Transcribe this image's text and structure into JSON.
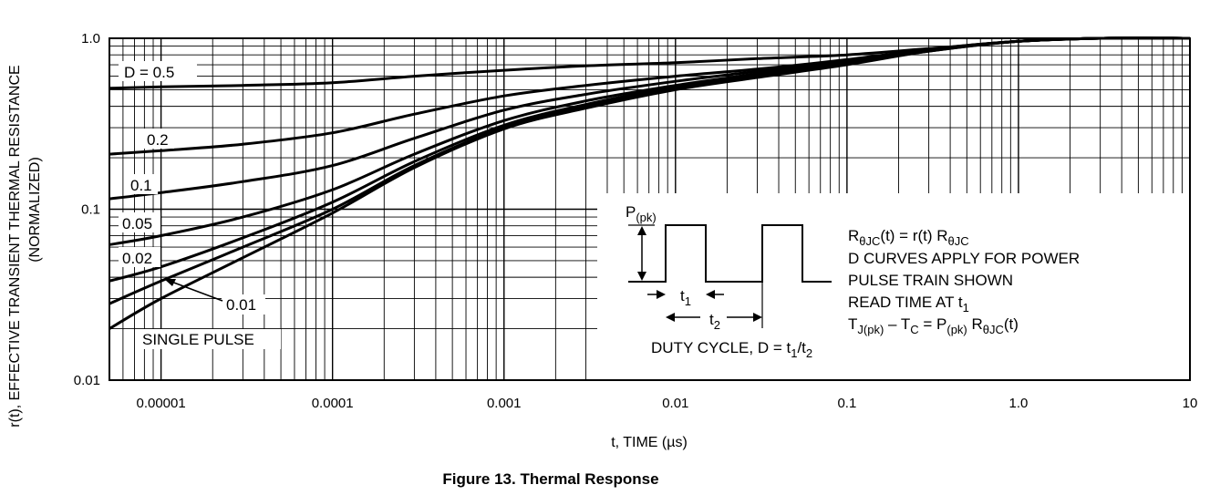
{
  "caption": "Figure 13. Thermal Response",
  "chart_data": {
    "type": "line",
    "title": "",
    "xlabel": "t, TIME (µs)",
    "ylabel_line1": "r(t), EFFECTIVE TRANSIENT THERMAL RESISTANCE",
    "ylabel_line2": "(NORMALIZED)",
    "x_scale": "log",
    "y_scale": "log",
    "xlim": [
      5e-06,
      10
    ],
    "ylim": [
      0.01,
      1.0
    ],
    "x_ticks": [
      {
        "value": 1e-05,
        "label": "0.00001"
      },
      {
        "value": 0.0001,
        "label": "0.0001"
      },
      {
        "value": 0.001,
        "label": "0.001"
      },
      {
        "value": 0.01,
        "label": "0.01"
      },
      {
        "value": 0.1,
        "label": "0.1"
      },
      {
        "value": 1,
        "label": "1.0"
      },
      {
        "value": 10,
        "label": "10"
      }
    ],
    "y_ticks": [
      {
        "value": 0.01,
        "label": "0.01"
      },
      {
        "value": 0.1,
        "label": "0.1"
      },
      {
        "value": 1,
        "label": "1.0"
      }
    ],
    "grid": true,
    "series": [
      {
        "name": "D = 0.5",
        "label": "D = 0.5",
        "x": [
          5e-06,
          1e-05,
          3e-05,
          0.0001,
          0.0003,
          0.001,
          0.003,
          0.01,
          0.03,
          0.1,
          0.3,
          1,
          3,
          10
        ],
        "y": [
          0.51,
          0.52,
          0.53,
          0.55,
          0.6,
          0.65,
          0.69,
          0.72,
          0.76,
          0.8,
          0.87,
          0.96,
          1.0,
          1.0
        ]
      },
      {
        "name": "0.2",
        "label": "0.2",
        "x": [
          5e-06,
          1e-05,
          3e-05,
          0.0001,
          0.0003,
          0.001,
          0.003,
          0.01,
          0.03,
          0.1,
          0.3,
          1,
          3,
          10
        ],
        "y": [
          0.21,
          0.22,
          0.24,
          0.28,
          0.36,
          0.46,
          0.53,
          0.6,
          0.66,
          0.75,
          0.86,
          0.96,
          1.0,
          1.0
        ]
      },
      {
        "name": "0.1",
        "label": "0.1",
        "x": [
          5e-06,
          1e-05,
          3e-05,
          0.0001,
          0.0003,
          0.001,
          0.003,
          0.01,
          0.03,
          0.1,
          0.3,
          1,
          3,
          10
        ],
        "y": [
          0.115,
          0.125,
          0.145,
          0.18,
          0.26,
          0.38,
          0.47,
          0.56,
          0.64,
          0.74,
          0.86,
          0.96,
          1.0,
          1.0
        ]
      },
      {
        "name": "0.05",
        "label": "0.05",
        "x": [
          5e-06,
          1e-05,
          3e-05,
          0.0001,
          0.0003,
          0.001,
          0.003,
          0.01,
          0.03,
          0.1,
          0.3,
          1,
          3,
          10
        ],
        "y": [
          0.062,
          0.07,
          0.09,
          0.13,
          0.21,
          0.33,
          0.43,
          0.53,
          0.62,
          0.73,
          0.85,
          0.96,
          1.0,
          1.0
        ]
      },
      {
        "name": "0.02",
        "label": "0.02",
        "x": [
          5e-06,
          1e-05,
          3e-05,
          0.0001,
          0.0003,
          0.001,
          0.003,
          0.01,
          0.03,
          0.1,
          0.3,
          1,
          3,
          10
        ],
        "y": [
          0.038,
          0.046,
          0.068,
          0.11,
          0.19,
          0.31,
          0.41,
          0.52,
          0.61,
          0.72,
          0.85,
          0.96,
          1.0,
          1.0
        ]
      },
      {
        "name": "0.01",
        "label": "0.01",
        "x": [
          5e-06,
          1e-05,
          3e-05,
          0.0001,
          0.0003,
          0.001,
          0.003,
          0.01,
          0.03,
          0.1,
          0.3,
          1,
          3,
          10
        ],
        "y": [
          0.028,
          0.038,
          0.06,
          0.1,
          0.18,
          0.3,
          0.4,
          0.51,
          0.6,
          0.71,
          0.84,
          0.96,
          1.0,
          1.0
        ]
      },
      {
        "name": "SINGLE PULSE",
        "label": "SINGLE PULSE",
        "x": [
          5e-06,
          1e-05,
          3e-05,
          0.0001,
          0.0003,
          0.001,
          0.003,
          0.01,
          0.03,
          0.1,
          0.3,
          1,
          3,
          10
        ],
        "y": [
          0.02,
          0.03,
          0.052,
          0.095,
          0.175,
          0.295,
          0.39,
          0.5,
          0.59,
          0.7,
          0.84,
          0.96,
          1.0,
          1.0
        ]
      }
    ]
  },
  "inset": {
    "p_pk": "P",
    "p_pk_sub": "(pk)",
    "t1": "t",
    "t1_sub": "1",
    "t2": "t",
    "t2_sub": "2",
    "duty_cycle": "DUTY CYCLE, D = t",
    "duty_sub1": "1",
    "duty_slash": "/t",
    "duty_sub2": "2",
    "eq1_a": "R",
    "eq1_sub_a": "θJC",
    "eq1_b": "(t) = r(t) R",
    "eq1_sub_b": "θJC",
    "line2": "D CURVES APPLY FOR POWER",
    "line3": "PULSE TRAIN SHOWN",
    "line4": "READ TIME AT t",
    "line4_sub": "1",
    "eq2_a": "T",
    "eq2_sub_a": "J(pk)",
    "eq2_b": " – T",
    "eq2_sub_b": "C",
    "eq2_c": " = P",
    "eq2_sub_c": "(pk)",
    "eq2_d": " R",
    "eq2_sub_d": "θJC",
    "eq2_e": "(t)"
  }
}
